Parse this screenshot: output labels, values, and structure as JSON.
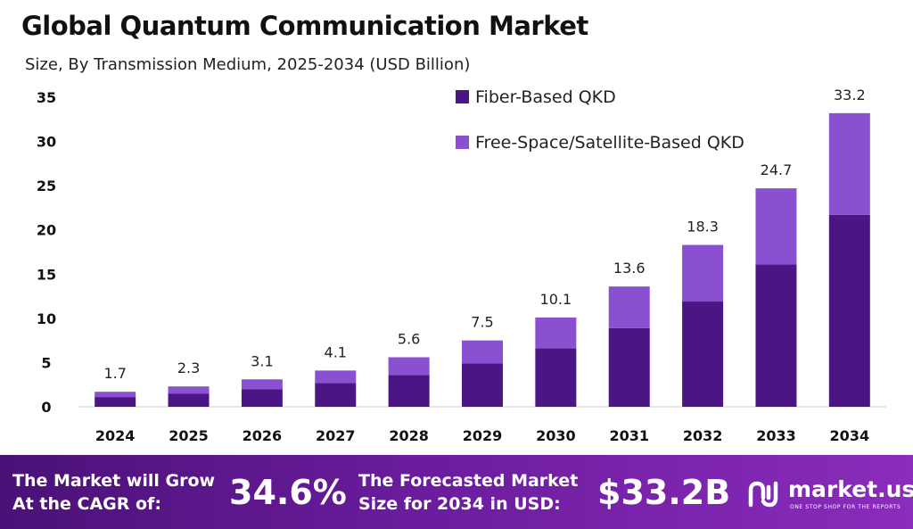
{
  "header": {
    "title": "Global Quantum Communication Market",
    "subtitle": "Size, By Transmission Medium, 2025-2034 (USD Billion)"
  },
  "chart_data": {
    "type": "bar",
    "stacked": true,
    "categories": [
      "2024",
      "2025",
      "2026",
      "2027",
      "2028",
      "2029",
      "2030",
      "2031",
      "2032",
      "2033",
      "2034"
    ],
    "series": [
      {
        "name": "Fiber-Based QKD",
        "color": "#4b1585",
        "values": [
          1.1,
          1.5,
          2.0,
          2.7,
          3.6,
          4.9,
          6.6,
          8.9,
          11.9,
          16.1,
          21.7
        ]
      },
      {
        "name": "Free-Space/Satellite-Based QKD",
        "color": "#8b4fd1",
        "values": [
          0.6,
          0.8,
          1.1,
          1.4,
          2.0,
          2.6,
          3.5,
          4.7,
          6.4,
          8.6,
          11.5
        ]
      }
    ],
    "totals": [
      "1.7",
      "2.3",
      "3.1",
      "4.1",
      "5.6",
      "7.5",
      "10.1",
      "13.6",
      "18.3",
      "24.7",
      "33.2"
    ],
    "yticks": [
      0,
      5,
      10,
      15,
      20,
      25,
      30,
      35
    ],
    "ylim": [
      0,
      35
    ],
    "xlabel": "",
    "ylabel": "",
    "grid": false,
    "legend_position": "top-right"
  },
  "footer": {
    "cagr_label_line1": "The Market will Grow",
    "cagr_label_line2": "At the CAGR of:",
    "cagr_value": "34.6%",
    "forecast_label_line1": "The Forecasted Market",
    "forecast_label_line2": "Size for 2034 in USD:",
    "forecast_value": "$33.2B",
    "brand_name": "market.us",
    "brand_tagline": "ONE STOP SHOP FOR THE REPORTS"
  }
}
